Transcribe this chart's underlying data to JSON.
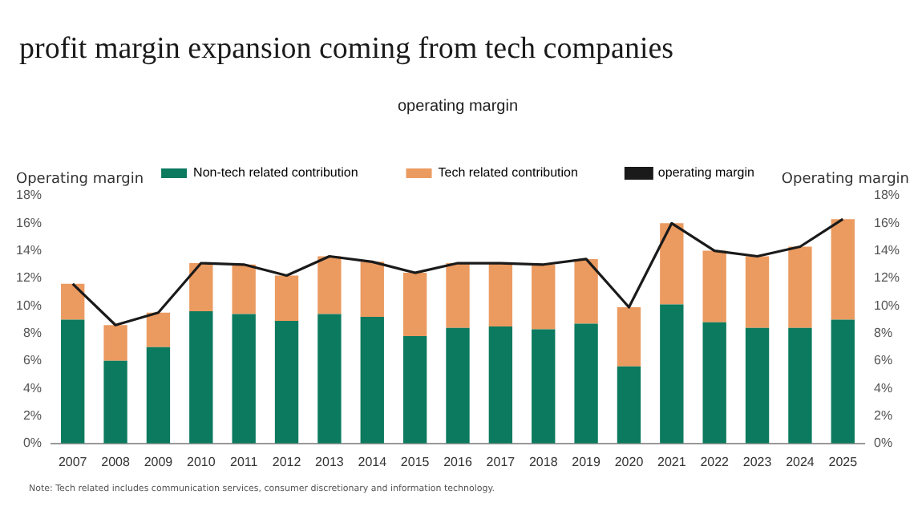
{
  "chart_data": {
    "type": "bar",
    "title": "profit margin expansion coming from tech companies",
    "subtitle": "operating margin",
    "ylabel": "Operating margin",
    "y2label": "Operating margin",
    "categories": [
      "2007",
      "2008",
      "2009",
      "2010",
      "2011",
      "2012",
      "2013",
      "2014",
      "2015",
      "2016",
      "2017",
      "2018",
      "2019",
      "2020",
      "2021",
      "2022",
      "2023",
      "2024",
      "2025"
    ],
    "stacked": true,
    "series": [
      {
        "name": "Non-tech related contribution",
        "color": "#0b7a5e",
        "values": [
          9.0,
          6.0,
          7.0,
          9.6,
          9.4,
          8.9,
          9.4,
          9.2,
          7.8,
          8.4,
          8.5,
          8.3,
          8.7,
          5.6,
          10.1,
          8.8,
          8.4,
          8.4,
          9.0
        ]
      },
      {
        "name": "Tech related contribution",
        "color": "#eb9a60",
        "values": [
          2.6,
          2.6,
          2.5,
          3.5,
          3.6,
          3.3,
          4.2,
          4.0,
          4.6,
          4.7,
          4.6,
          4.7,
          4.7,
          4.3,
          5.9,
          5.2,
          5.2,
          5.9,
          7.3
        ]
      },
      {
        "name": "operating margin",
        "type": "line",
        "color": "#1a1a1a",
        "values": [
          11.6,
          8.6,
          9.5,
          13.1,
          13.0,
          12.2,
          13.6,
          13.2,
          12.4,
          13.1,
          13.1,
          13.0,
          13.4,
          9.9,
          16.0,
          14.0,
          13.6,
          14.3,
          16.3
        ]
      }
    ],
    "ylim": [
      0,
      18
    ],
    "yticks": [
      {
        "value": 0,
        "label": "0%"
      },
      {
        "value": 2,
        "label": "2%"
      },
      {
        "value": 4,
        "label": "4%"
      },
      {
        "value": 6,
        "label": "6%"
      },
      {
        "value": 8,
        "label": "8%"
      },
      {
        "value": 10,
        "label": "10%"
      },
      {
        "value": 12,
        "label": "12%"
      },
      {
        "value": 14,
        "label": "14%"
      },
      {
        "value": 16,
        "label": "16%"
      },
      {
        "value": 18,
        "label": "18%"
      }
    ],
    "y2lim": [
      0,
      18
    ],
    "y2ticks": [
      {
        "value": 0,
        "label": "0%"
      },
      {
        "value": 2,
        "label": "2%"
      },
      {
        "value": 4,
        "label": "4%"
      },
      {
        "value": 6,
        "label": "6%"
      },
      {
        "value": 8,
        "label": "8%"
      },
      {
        "value": 10,
        "label": "10%"
      },
      {
        "value": 12,
        "label": "12%"
      },
      {
        "value": 14,
        "label": "14%"
      },
      {
        "value": 16,
        "label": "16%"
      },
      {
        "value": 18,
        "label": "18%"
      }
    ],
    "grid": false,
    "legend": "top",
    "marker": "none",
    "annotations": [
      "Note: Tech related includes communication services, consumer discretionary and information technology."
    ]
  }
}
